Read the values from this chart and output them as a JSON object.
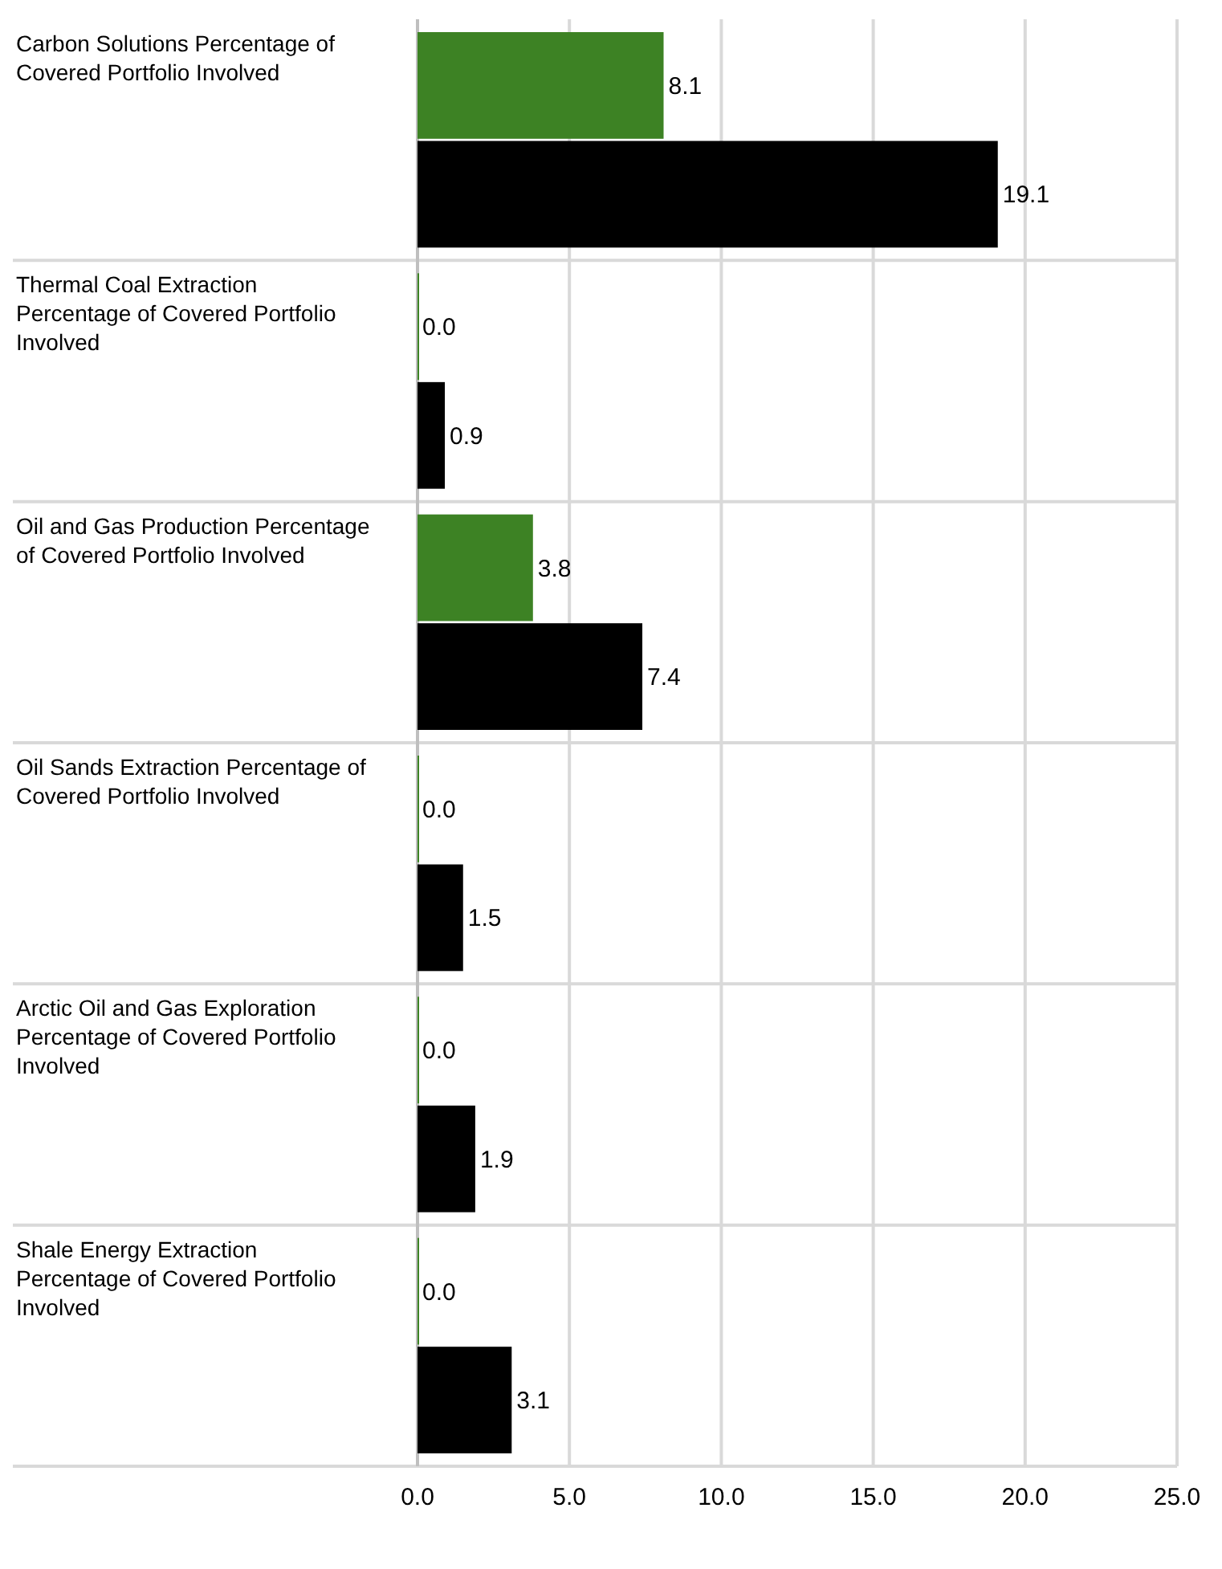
{
  "chart_data": {
    "type": "bar",
    "orientation": "horizontal",
    "categories": [
      "Carbon Solutions Percentage of Covered Portfolio Involved",
      "Thermal Coal Extraction Percentage of Covered Portfolio Involved",
      "Oil and Gas Production Percentage of Covered Portfolio Involved",
      "Oil Sands Extraction Percentage of Covered Portfolio Involved",
      "Arctic Oil and Gas Exploration Percentage of Covered Portfolio Involved",
      "Shale Energy Extraction Percentage of Covered Portfolio Involved"
    ],
    "series": [
      {
        "color": "#3d8224",
        "values": [
          8.1,
          0,
          3.8,
          0,
          0,
          0
        ],
        "value_labels": [
          "8.1",
          "0.0",
          "3.8",
          "0.0",
          "0.0",
          "0.0"
        ]
      },
      {
        "color": "#000000",
        "values": [
          19.1,
          0.9,
          7.4,
          1.5,
          1.9,
          3.1
        ],
        "value_labels": [
          "19.1",
          "0.9",
          "7.4",
          "1.5",
          "1.9",
          "3.1"
        ]
      }
    ],
    "xlim": [
      0,
      25
    ],
    "xticks": [
      {
        "value": 0,
        "label": "0.0"
      },
      {
        "value": 5,
        "label": "5.0"
      },
      {
        "value": 10,
        "label": "10.0"
      },
      {
        "value": 15,
        "label": "15.0"
      },
      {
        "value": 20,
        "label": "20.0"
      },
      {
        "value": 25,
        "label": "25.0"
      }
    ],
    "grid": true
  }
}
